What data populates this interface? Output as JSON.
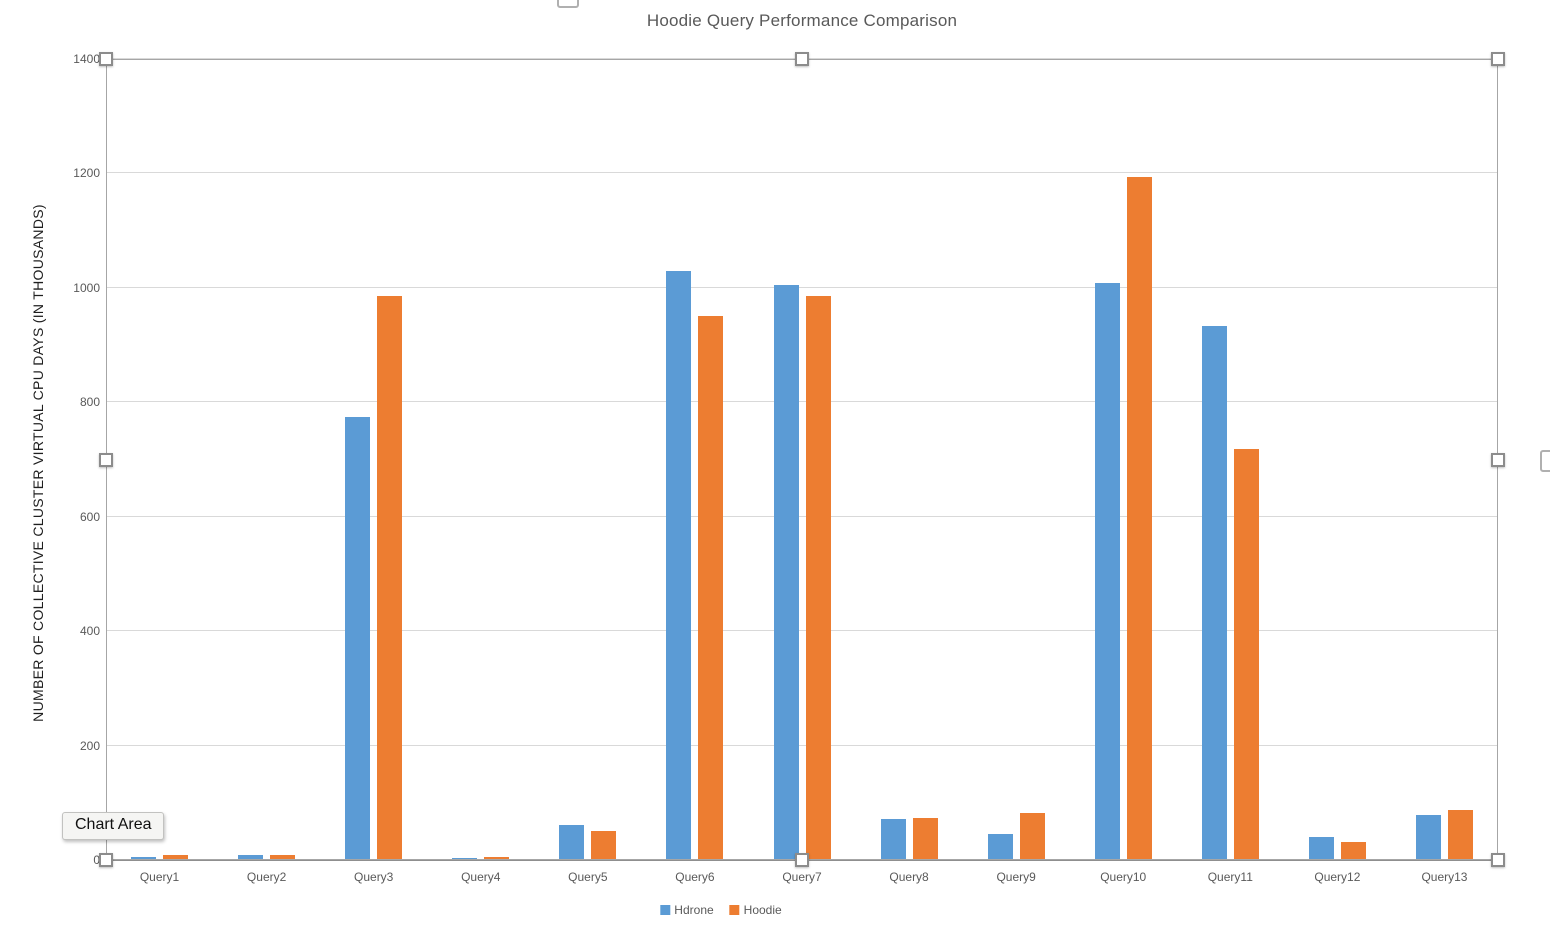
{
  "chart_data": {
    "type": "bar",
    "title": "Hoodie Query Performance Comparison",
    "ylabel": "NUMBER OF COLLECTIVE CLUSTER VIRTUAL CPU DAYS (IN THOUSANDS)",
    "xlabel": "",
    "categories": [
      "Query1",
      "Query2",
      "Query3",
      "Query4",
      "Query5",
      "Query6",
      "Query7",
      "Query8",
      "Query9",
      "Query10",
      "Query11",
      "Query12",
      "Query13"
    ],
    "series": [
      {
        "name": "Hdrone",
        "color": "#5B9BD5",
        "values": [
          5,
          9,
          775,
          4,
          62,
          1030,
          1005,
          72,
          46,
          1008,
          934,
          40,
          79
        ]
      },
      {
        "name": "Hoodie",
        "color": "#ED7D31",
        "values": [
          9,
          8,
          985,
          5,
          50,
          950,
          985,
          73,
          83,
          1193,
          718,
          31,
          88
        ]
      }
    ],
    "ylim": [
      0,
      1400
    ],
    "yticks": [
      0,
      200,
      400,
      600,
      800,
      1000,
      1200,
      1400
    ],
    "grid": "horizontal",
    "legend_position": "bottom"
  },
  "tooltip": {
    "label": "Chart Area"
  },
  "colors": {
    "series_hdrone": "#5B9BD5",
    "series_hoodie": "#ED7D31",
    "gridline": "#D9D9D9",
    "axis_line": "#8F8F8F",
    "text": "#595959",
    "selection_border": "#A6A6A6"
  }
}
